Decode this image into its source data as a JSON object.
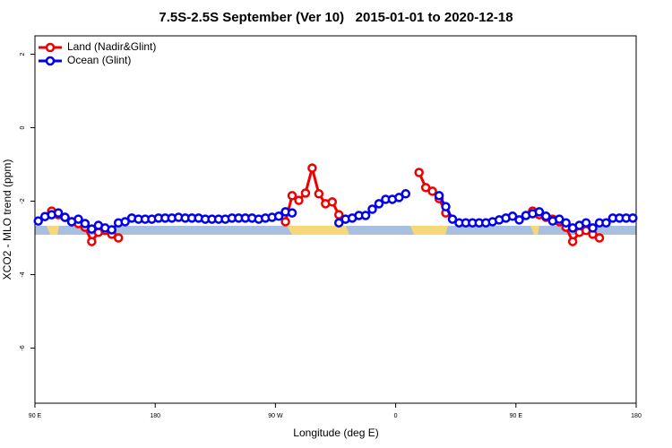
{
  "chart_data": {
    "type": "line",
    "title": "7.5S-2.5S September (Ver 10)   2015-01-01 to 2020-12-18",
    "x_label": "Longitude (deg E)",
    "y_label": "XCO2 - MLO trend (ppm)",
    "xlim": [
      -270,
      180
    ],
    "ylim": [
      -7.5,
      2.5
    ],
    "xticks": [
      {
        "value": -270,
        "label": "90 E"
      },
      {
        "value": -180,
        "label": "180"
      },
      {
        "value": -90,
        "label": "90 W"
      },
      0,
      {
        "value": 90,
        "label": "90 E"
      },
      {
        "value": 180,
        "label": "180"
      }
    ],
    "yticks": [
      2,
      0,
      -2,
      -4,
      -6
    ],
    "legend": "top-left",
    "x": [
      -267.5,
      -262.5,
      -257.5,
      -252.5,
      -247.5,
      -242.5,
      -237.5,
      -232.5,
      -227.5,
      -222.5,
      -217.5,
      -212.5,
      -207.5,
      -202.5,
      -197.5,
      -192.5,
      -187.5,
      -182.5,
      -177.5,
      -172.5,
      -167.5,
      -162.5,
      -157.5,
      -152.5,
      -147.5,
      -142.5,
      -137.5,
      -132.5,
      -127.5,
      -122.5,
      -117.5,
      -112.5,
      -107.5,
      -102.5,
      -97.5,
      -92.5,
      -87.5,
      -82.5,
      -77.5,
      -72.5,
      -67.5,
      -62.5,
      -57.5,
      -52.5,
      -47.5,
      -42.5,
      -37.5,
      -32.5,
      -27.5,
      -22.5,
      -17.5,
      -12.5,
      -7.5,
      -2.5,
      2.5,
      7.5,
      12.5,
      17.5,
      22.5,
      27.5,
      32.5,
      37.5,
      42.5,
      47.5,
      52.5,
      57.5,
      62.5,
      67.5,
      72.5,
      77.5,
      82.5,
      87.5,
      92.5,
      97.5,
      102.5,
      107.5,
      112.5,
      117.5,
      122.5,
      127.5,
      132.5,
      137.5,
      142.5,
      147.5,
      152.5,
      157.5,
      162.5,
      167.5,
      172.5,
      177.5
    ],
    "series": [
      {
        "name": "Land (Nadir&Glint)",
        "color": "#ee0000",
        "values": [
          null,
          null,
          -2.27,
          -2.37,
          -2.44,
          -2.56,
          -2.61,
          -2.71,
          -3.1,
          -2.85,
          -2.8,
          -2.9,
          -3.0,
          null,
          null,
          null,
          null,
          null,
          null,
          null,
          null,
          null,
          null,
          null,
          null,
          null,
          null,
          null,
          null,
          null,
          null,
          null,
          null,
          null,
          null,
          null,
          null,
          -2.56,
          -1.85,
          -1.98,
          -1.78,
          -1.1,
          -1.8,
          -2.07,
          -2.02,
          -2.37,
          null,
          null,
          null,
          null,
          null,
          null,
          null,
          null,
          null,
          null,
          null,
          -1.22,
          -1.63,
          -1.73,
          -1.93,
          -2.32,
          null,
          null,
          null,
          null,
          null,
          null,
          null,
          null,
          null,
          null,
          null,
          null,
          -2.27,
          -2.37,
          -2.44,
          -2.49,
          -2.56,
          -2.71,
          -3.1,
          -2.85,
          -2.8,
          -2.9,
          -3.0,
          null,
          null,
          null,
          null,
          null
        ]
      },
      {
        "name": "Ocean (Glint)",
        "color": "#0000ee",
        "values": [
          -2.54,
          -2.42,
          -2.37,
          -2.32,
          -2.44,
          -2.56,
          -2.49,
          -2.61,
          -2.76,
          -2.66,
          -2.73,
          -2.78,
          -2.59,
          -2.56,
          -2.46,
          -2.49,
          -2.49,
          -2.49,
          -2.46,
          -2.46,
          -2.46,
          -2.44,
          -2.46,
          -2.46,
          -2.46,
          -2.49,
          -2.49,
          -2.49,
          -2.49,
          -2.46,
          -2.46,
          -2.46,
          -2.46,
          -2.49,
          -2.46,
          -2.44,
          -2.41,
          -2.29,
          -2.32,
          null,
          null,
          null,
          null,
          null,
          null,
          -2.59,
          -2.49,
          -2.46,
          -2.39,
          -2.39,
          -2.22,
          -2.07,
          -1.95,
          -1.95,
          -1.9,
          -1.8,
          null,
          null,
          null,
          null,
          -1.85,
          -2.15,
          -2.49,
          -2.59,
          -2.59,
          -2.59,
          -2.59,
          -2.59,
          -2.56,
          -2.51,
          -2.46,
          -2.41,
          -2.51,
          -2.39,
          -2.34,
          -2.29,
          -2.41,
          -2.54,
          -2.49,
          -2.59,
          -2.73,
          -2.66,
          -2.59,
          -2.73,
          -2.59,
          -2.59,
          -2.46,
          -2.46,
          -2.46,
          -2.46
        ]
      }
    ]
  }
}
